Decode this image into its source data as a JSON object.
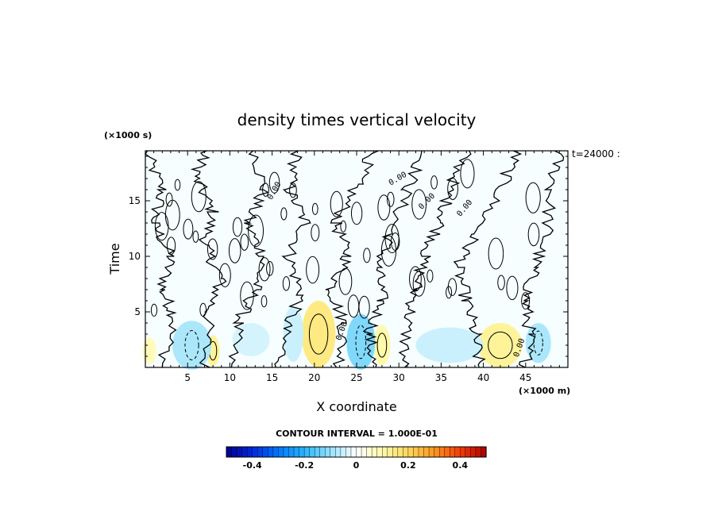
{
  "chart_data": {
    "type": "contour",
    "title": "density times vertical velocity",
    "xlabel": "X coordinate",
    "ylabel": "Time",
    "x_unit": "(×1000 m)",
    "y_unit": "(×1000 s)",
    "time_label": "t=24000 :",
    "xlim": [
      0,
      50
    ],
    "ylim": [
      0,
      19.5
    ],
    "x_ticks": [
      5,
      10,
      15,
      20,
      25,
      30,
      35,
      40,
      45
    ],
    "y_ticks": [
      5,
      10,
      15
    ],
    "contour_interval_label": "CONTOUR INTERVAL = 1.000E-01",
    "contour_label": "0.00",
    "colorbar": {
      "min": -0.5,
      "max": 0.5,
      "ticks": [
        -0.4,
        -0.2,
        0,
        0.2,
        0.4
      ],
      "tick_labels": [
        "-0.4",
        "-0.2",
        "0",
        "0.2",
        "0.4"
      ]
    },
    "features": [
      {
        "kind": "positive",
        "x": 20.5,
        "y": 3.0,
        "rx": 2.0,
        "ry": 3.0,
        "value": 0.15
      },
      {
        "kind": "positive",
        "x": 42.0,
        "y": 2.0,
        "rx": 2.6,
        "ry": 2.0,
        "value": 0.12
      },
      {
        "kind": "positive",
        "x": 8.0,
        "y": 1.5,
        "rx": 0.8,
        "ry": 1.4,
        "value": 0.12
      },
      {
        "kind": "positive",
        "x": 28.0,
        "y": 2.0,
        "rx": 1.0,
        "ry": 1.8,
        "value": 0.1
      },
      {
        "kind": "positive",
        "x": 0.5,
        "y": 1.5,
        "rx": 0.8,
        "ry": 1.2,
        "value": 0.08
      },
      {
        "kind": "negative",
        "x": 5.5,
        "y": 2.0,
        "rx": 2.3,
        "ry": 2.2,
        "value": -0.08
      },
      {
        "kind": "negative",
        "x": 25.5,
        "y": 2.3,
        "rx": 1.7,
        "ry": 2.5,
        "value": -0.12
      },
      {
        "kind": "negative",
        "x": 46.5,
        "y": 2.2,
        "rx": 1.5,
        "ry": 1.8,
        "value": -0.08
      },
      {
        "kind": "negative",
        "x": 36.0,
        "y": 2.0,
        "rx": 4.0,
        "ry": 1.6,
        "value": -0.05
      },
      {
        "kind": "negative",
        "x": 12.5,
        "y": 2.5,
        "rx": 2.2,
        "ry": 1.5,
        "value": -0.04
      },
      {
        "kind": "negative",
        "x": 17.5,
        "y": 3.0,
        "rx": 1.2,
        "ry": 2.5,
        "value": -0.05
      }
    ]
  }
}
